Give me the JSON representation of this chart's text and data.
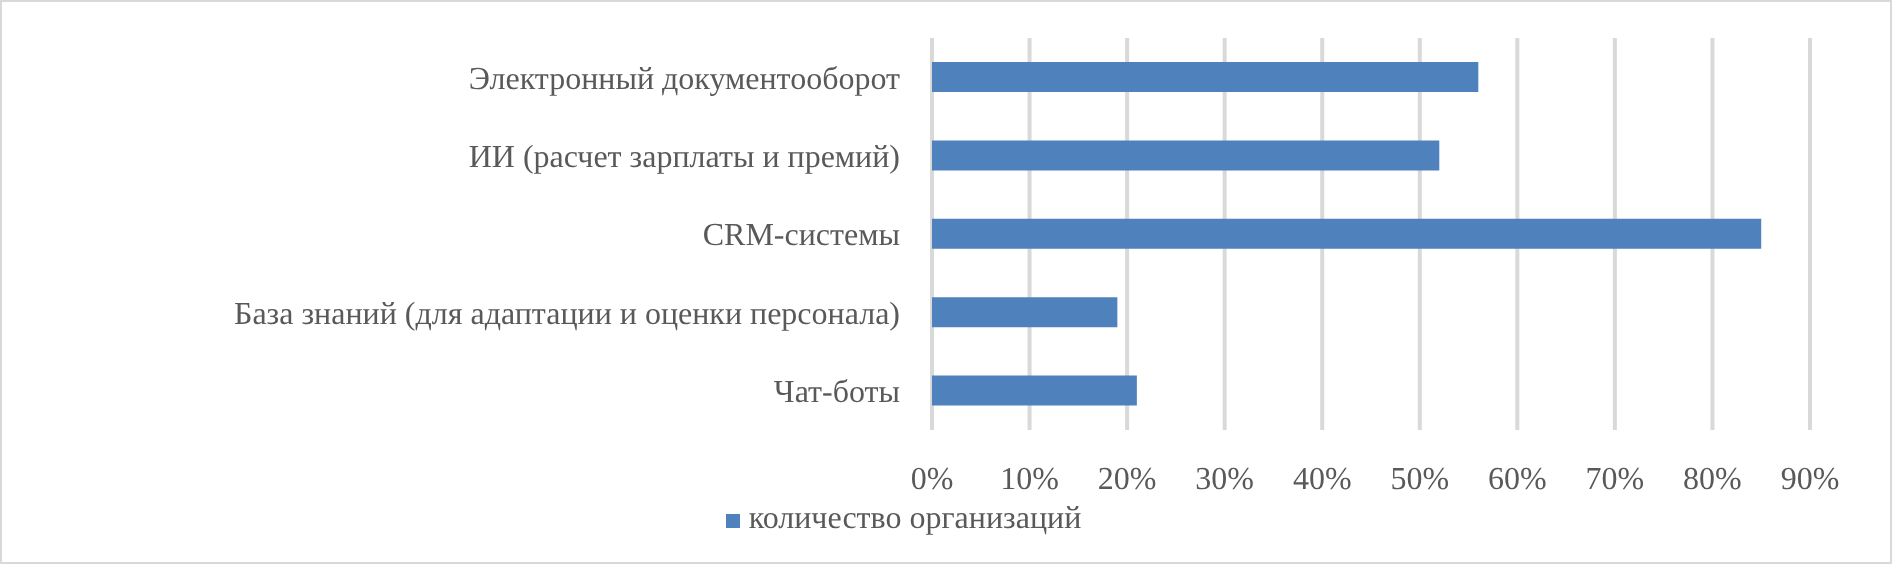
{
  "chart_data": {
    "type": "bar",
    "orientation": "horizontal",
    "categories": [
      "Электронный документооборот",
      "ИИ (расчет зарплаты и премий)",
      "CRM-системы",
      "База знаний (для адаптации и оценки персонала)",
      "Чат-боты"
    ],
    "series": [
      {
        "name": "количество организаций",
        "color": "#4f81bd",
        "values": [
          56,
          52,
          85,
          19,
          21
        ]
      }
    ],
    "xlim": [
      0,
      90
    ],
    "xticks": [
      {
        "value": 0,
        "label": "0%"
      },
      {
        "value": 10,
        "label": "10%"
      },
      {
        "value": 20,
        "label": "20%"
      },
      {
        "value": 30,
        "label": "30%"
      },
      {
        "value": 40,
        "label": "40%"
      },
      {
        "value": 50,
        "label": "50%"
      },
      {
        "value": 60,
        "label": "60%"
      },
      {
        "value": 70,
        "label": "70%"
      },
      {
        "value": 80,
        "label": "80%"
      },
      {
        "value": 90,
        "label": "90%"
      }
    ],
    "grid": "x",
    "legend": "bottom"
  }
}
